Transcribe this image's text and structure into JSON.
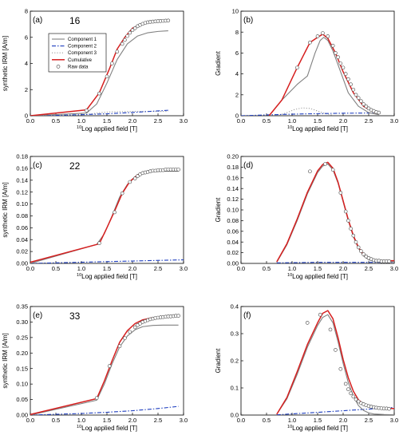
{
  "colors": {
    "component1": "#808080",
    "component2": "#1f3fbf",
    "component3": "#a0a0a0",
    "cumulative": "#d61f1f",
    "raw": "#444444"
  },
  "legend": {
    "component1": "Component 1",
    "component2": "Component 2",
    "component3": "Component 3",
    "cumulative": "Cumulative",
    "raw": "Raw data"
  },
  "chart_data": [
    {
      "panel": "(a)",
      "sample": "16",
      "type": "line",
      "kind": "irm",
      "xlabel_sup": "10",
      "xlabel": "Log applied field [T]",
      "ylabel": "synthetic IRM [A/m]",
      "xlim": [
        0,
        3
      ],
      "ylim": [
        0,
        8
      ],
      "xticks": [
        "0.0",
        "0.5",
        "1.0",
        "1.5",
        "2.0",
        "2.5",
        "3.0"
      ],
      "yticks": [
        "0",
        "2",
        "4",
        "6",
        "8"
      ],
      "legend_position": "top-left",
      "series": [
        {
          "name": "Component 1",
          "x": [
            0,
            1.1,
            1.3,
            1.5,
            1.7,
            1.9,
            2.1,
            2.3,
            2.5,
            2.7
          ],
          "y": [
            0,
            0.2,
            0.9,
            2.5,
            4.3,
            5.5,
            6.1,
            6.35,
            6.45,
            6.5
          ]
        },
        {
          "name": "Component 2",
          "x": [
            0,
            0.5,
            1.0,
            1.5,
            2.0,
            2.5,
            2.7
          ],
          "y": [
            0,
            0.03,
            0.08,
            0.15,
            0.25,
            0.37,
            0.42
          ]
        },
        {
          "name": "Component 3",
          "x": [
            0,
            0.8,
            1.0,
            1.2,
            1.4,
            1.6,
            1.8,
            2.0,
            2.7
          ],
          "y": [
            0,
            0.01,
            0.05,
            0.15,
            0.25,
            0.3,
            0.32,
            0.33,
            0.33
          ]
        },
        {
          "name": "Cumulative",
          "x": [
            0,
            1.1,
            1.35,
            1.55,
            1.7,
            1.85,
            2.0,
            2.2,
            2.4,
            2.7
          ],
          "y": [
            0,
            0.45,
            1.75,
            3.6,
            5.1,
            6.0,
            6.7,
            7.05,
            7.2,
            7.3
          ]
        },
        {
          "name": "Raw data",
          "x": [
            1.1,
            1.35,
            1.5,
            1.6,
            1.7,
            1.8,
            1.85,
            1.9,
            1.95,
            2.0,
            2.05,
            2.1,
            2.15,
            2.2,
            2.25,
            2.3,
            2.35,
            2.4,
            2.45,
            2.5,
            2.55,
            2.6,
            2.65,
            2.7
          ],
          "y": [
            0.4,
            1.7,
            3.0,
            4.0,
            4.9,
            5.5,
            5.8,
            6.1,
            6.35,
            6.55,
            6.7,
            6.85,
            6.95,
            7.03,
            7.1,
            7.15,
            7.18,
            7.2,
            7.22,
            7.24,
            7.25,
            7.26,
            7.27,
            7.28
          ]
        }
      ]
    },
    {
      "panel": "(b)",
      "sample": "",
      "type": "line",
      "kind": "gradient",
      "xlabel_sup": "10",
      "xlabel": "Log applied field [T]",
      "ylabel": "Gradient",
      "xlim": [
        0,
        3
      ],
      "ylim": [
        0,
        10
      ],
      "xticks": [
        "0.0",
        "0.5",
        "1.0",
        "1.5",
        "2.0",
        "2.5",
        "3.0"
      ],
      "yticks": [
        "0",
        "2",
        "4",
        "6",
        "8",
        "10"
      ],
      "series": [
        {
          "name": "Component 1",
          "x": [
            0.55,
            0.8,
            1.1,
            1.3,
            1.45,
            1.55,
            1.62,
            1.7,
            1.8,
            1.95,
            2.1,
            2.3,
            2.5,
            2.7
          ],
          "y": [
            0,
            1.5,
            3.0,
            3.8,
            6.0,
            7.2,
            7.5,
            7.2,
            6.2,
            4.2,
            2.2,
            0.9,
            0.3,
            0.1
          ]
        },
        {
          "name": "Component 2",
          "x": [
            0,
            0.5,
            1.0,
            1.5,
            2.0,
            2.5,
            2.7
          ],
          "y": [
            0,
            0.08,
            0.15,
            0.2,
            0.24,
            0.26,
            0.27
          ]
        },
        {
          "name": "Component 3",
          "x": [
            0.75,
            0.9,
            1.05,
            1.2,
            1.35,
            1.5,
            1.65,
            1.8
          ],
          "y": [
            0.05,
            0.3,
            0.6,
            0.75,
            0.7,
            0.45,
            0.2,
            0.05
          ]
        },
        {
          "name": "Cumulative",
          "x": [
            0.55,
            0.8,
            1.1,
            1.35,
            1.5,
            1.6,
            1.7,
            1.85,
            2.0,
            2.2,
            2.4,
            2.6,
            2.7
          ],
          "y": [
            0,
            1.5,
            4.6,
            7.0,
            7.5,
            7.8,
            7.4,
            6.0,
            4.2,
            2.2,
            0.9,
            0.35,
            0.25
          ]
        },
        {
          "name": "Raw data",
          "x": [
            1.1,
            1.35,
            1.5,
            1.6,
            1.7,
            1.8,
            1.85,
            1.9,
            1.95,
            2.0,
            2.05,
            2.1,
            2.15,
            2.2,
            2.25,
            2.3,
            2.35,
            2.4,
            2.45,
            2.5,
            2.55,
            2.6,
            2.65,
            2.7
          ],
          "y": [
            4.6,
            7.0,
            7.6,
            7.9,
            7.6,
            6.7,
            6.0,
            5.6,
            5.0,
            4.6,
            4.0,
            3.5,
            3.0,
            2.5,
            2.0,
            1.7,
            1.4,
            1.1,
            0.9,
            0.7,
            0.55,
            0.45,
            0.35,
            0.3
          ]
        }
      ]
    },
    {
      "panel": "(c)",
      "sample": "22",
      "type": "line",
      "kind": "irm",
      "xlabel_sup": "10",
      "xlabel": "Log applied field [T]",
      "ylabel": "synthetic IRM [A/m]",
      "xlim": [
        0,
        3
      ],
      "ylim": [
        0,
        0.18
      ],
      "xticks": [
        "0.0",
        "0.5",
        "1.0",
        "1.5",
        "2.0",
        "2.5",
        "3.0"
      ],
      "yticks": [
        "0.00",
        "0.02",
        "0.04",
        "0.06",
        "0.08",
        "0.10",
        "0.12",
        "0.14",
        "0.16",
        "0.18"
      ],
      "series": [
        {
          "name": "Component 1",
          "x": [
            0,
            1.3,
            1.45,
            1.6,
            1.75,
            1.9,
            2.05,
            2.2,
            2.4,
            2.6,
            2.9
          ],
          "y": [
            0,
            0.032,
            0.05,
            0.08,
            0.112,
            0.133,
            0.145,
            0.151,
            0.154,
            0.155,
            0.155
          ]
        },
        {
          "name": "Component 2",
          "x": [
            0,
            1.0,
            2.0,
            3.0
          ],
          "y": [
            0,
            0.002,
            0.004,
            0.006
          ]
        },
        {
          "name": "Cumulative",
          "x": [
            0,
            1.35,
            1.5,
            1.65,
            1.8,
            1.95,
            2.1,
            2.3,
            2.5,
            2.7,
            2.9
          ],
          "y": [
            0.002,
            0.033,
            0.06,
            0.088,
            0.118,
            0.138,
            0.149,
            0.155,
            0.157,
            0.158,
            0.158
          ]
        },
        {
          "name": "Raw data",
          "x": [
            1.35,
            1.65,
            1.8,
            1.95,
            2.05,
            2.1,
            2.15,
            2.2,
            2.25,
            2.3,
            2.35,
            2.4,
            2.45,
            2.5,
            2.55,
            2.6,
            2.65,
            2.7,
            2.75,
            2.8,
            2.85,
            2.9
          ],
          "y": [
            0.034,
            0.086,
            0.118,
            0.137,
            0.143,
            0.147,
            0.15,
            0.152,
            0.153,
            0.154,
            0.155,
            0.156,
            0.156,
            0.157,
            0.157,
            0.157,
            0.158,
            0.158,
            0.158,
            0.158,
            0.158,
            0.158
          ]
        }
      ]
    },
    {
      "panel": "(d)",
      "sample": "",
      "type": "line",
      "kind": "gradient",
      "xlabel_sup": "10",
      "xlabel": "Log applied field [T]",
      "ylabel": "Gradient",
      "xlim": [
        0,
        3
      ],
      "ylim": [
        0,
        0.2
      ],
      "xticks": [
        "0.0",
        "0.5",
        "1.0",
        "1.5",
        "2.0",
        "2.5",
        "3.0"
      ],
      "yticks": [
        "0.00",
        "0.02",
        "0.04",
        "0.06",
        "0.08",
        "0.10",
        "0.12",
        "0.14",
        "0.16",
        "0.18",
        "0.20"
      ],
      "series": [
        {
          "name": "Component 1",
          "x": [
            0.7,
            0.9,
            1.1,
            1.3,
            1.5,
            1.6,
            1.7,
            1.8,
            1.9,
            2.0,
            2.1,
            2.2,
            2.3,
            2.4,
            2.5,
            2.6,
            2.8,
            3.0
          ],
          "y": [
            0.002,
            0.035,
            0.08,
            0.13,
            0.17,
            0.182,
            0.186,
            0.175,
            0.15,
            0.115,
            0.08,
            0.05,
            0.028,
            0.014,
            0.007,
            0.004,
            0.003,
            0.003
          ]
        },
        {
          "name": "Component 2",
          "x": [
            0.7,
            1.5,
            2.5,
            3.0
          ],
          "y": [
            0.001,
            0.002,
            0.002,
            0.002
          ]
        },
        {
          "name": "Cumulative",
          "x": [
            0.7,
            0.9,
            1.1,
            1.3,
            1.5,
            1.6,
            1.7,
            1.8,
            1.9,
            2.0,
            2.1,
            2.2,
            2.3,
            2.4,
            2.5,
            2.6,
            2.8,
            3.0
          ],
          "y": [
            0.003,
            0.037,
            0.083,
            0.133,
            0.173,
            0.185,
            0.189,
            0.178,
            0.152,
            0.117,
            0.082,
            0.052,
            0.03,
            0.016,
            0.009,
            0.006,
            0.005,
            0.005
          ]
        },
        {
          "name": "Raw data",
          "x": [
            1.35,
            1.65,
            1.8,
            1.95,
            2.05,
            2.1,
            2.15,
            2.2,
            2.25,
            2.3,
            2.35,
            2.4,
            2.45,
            2.5,
            2.55,
            2.6,
            2.65,
            2.7,
            2.75,
            2.8,
            2.85,
            2.9
          ],
          "y": [
            0.172,
            0.186,
            0.175,
            0.132,
            0.097,
            0.08,
            0.065,
            0.052,
            0.04,
            0.03,
            0.023,
            0.017,
            0.013,
            0.01,
            0.008,
            0.006,
            0.005,
            0.005,
            0.004,
            0.004,
            0.004,
            0.004
          ]
        }
      ]
    },
    {
      "panel": "(e)",
      "sample": "33",
      "type": "line",
      "kind": "irm",
      "xlabel_sup": "10",
      "xlabel": "Log applied field [T]",
      "ylabel": "synthetic IRM [A/m]",
      "xlim": [
        0,
        3
      ],
      "ylim": [
        0,
        0.35
      ],
      "xticks": [
        "0.0",
        "0.5",
        "1.0",
        "1.5",
        "2.0",
        "2.5",
        "3.0"
      ],
      "yticks": [
        "0.00",
        "0.05",
        "0.10",
        "0.15",
        "0.20",
        "0.25",
        "0.30",
        "0.35"
      ],
      "series": [
        {
          "name": "Component 1",
          "x": [
            0,
            1.3,
            1.45,
            1.6,
            1.75,
            1.9,
            2.05,
            2.2,
            2.4,
            2.6,
            2.9
          ],
          "y": [
            0,
            0.048,
            0.1,
            0.165,
            0.22,
            0.255,
            0.275,
            0.285,
            0.289,
            0.29,
            0.29
          ]
        },
        {
          "name": "Component 2",
          "x": [
            0,
            1.0,
            1.5,
            2.0,
            2.5,
            2.9
          ],
          "y": [
            0,
            0.005,
            0.009,
            0.014,
            0.021,
            0.028
          ]
        },
        {
          "name": "Cumulative",
          "x": [
            0,
            1.3,
            1.45,
            1.6,
            1.75,
            1.9,
            2.05,
            2.2,
            2.4,
            2.6,
            2.9
          ],
          "y": [
            0.002,
            0.053,
            0.11,
            0.175,
            0.235,
            0.272,
            0.295,
            0.307,
            0.314,
            0.318,
            0.321
          ]
        },
        {
          "name": "Raw data",
          "x": [
            1.3,
            1.55,
            1.75,
            1.85,
            1.95,
            2.05,
            2.1,
            2.15,
            2.2,
            2.25,
            2.3,
            2.35,
            2.4,
            2.45,
            2.5,
            2.55,
            2.6,
            2.65,
            2.7,
            2.75,
            2.8,
            2.85,
            2.9
          ],
          "y": [
            0.055,
            0.158,
            0.222,
            0.248,
            0.268,
            0.283,
            0.29,
            0.295,
            0.3,
            0.303,
            0.306,
            0.309,
            0.311,
            0.313,
            0.314,
            0.315,
            0.316,
            0.317,
            0.318,
            0.318,
            0.319,
            0.32,
            0.32
          ]
        }
      ]
    },
    {
      "panel": "(f)",
      "sample": "",
      "type": "line",
      "kind": "gradient",
      "xlabel_sup": "10",
      "xlabel": "Log applied field [T]",
      "ylabel": "Gradient",
      "xlim": [
        0,
        3
      ],
      "ylim": [
        0,
        0.4
      ],
      "xticks": [
        "0.0",
        "0.5",
        "1.0",
        "1.5",
        "2.0",
        "2.5",
        "3.0"
      ],
      "yticks": [
        "0.0",
        "0.1",
        "0.2",
        "0.3",
        "0.4"
      ],
      "series": [
        {
          "name": "Component 1",
          "x": [
            0.7,
            0.9,
            1.1,
            1.3,
            1.5,
            1.6,
            1.7,
            1.8,
            1.9,
            2.0,
            2.1,
            2.2,
            2.3,
            2.4,
            2.5,
            2.6,
            2.8,
            3.0
          ],
          "y": [
            0.003,
            0.06,
            0.15,
            0.25,
            0.33,
            0.36,
            0.37,
            0.34,
            0.27,
            0.19,
            0.12,
            0.07,
            0.035,
            0.017,
            0.008,
            0.004,
            0.002,
            0.001
          ]
        },
        {
          "name": "Component 2",
          "x": [
            0.7,
            1.5,
            2.0,
            2.5,
            3.0
          ],
          "y": [
            0.001,
            0.01,
            0.016,
            0.022,
            0.028
          ]
        },
        {
          "name": "Cumulative",
          "x": [
            0.7,
            0.9,
            1.1,
            1.3,
            1.5,
            1.6,
            1.7,
            1.8,
            1.9,
            2.0,
            2.1,
            2.2,
            2.3,
            2.4,
            2.5,
            2.6,
            2.8,
            3.0
          ],
          "y": [
            0.003,
            0.065,
            0.16,
            0.26,
            0.34,
            0.375,
            0.385,
            0.355,
            0.285,
            0.205,
            0.138,
            0.088,
            0.056,
            0.04,
            0.032,
            0.028,
            0.025,
            0.024
          ]
        },
        {
          "name": "Raw data",
          "x": [
            1.3,
            1.55,
            1.75,
            1.85,
            1.95,
            2.05,
            2.1,
            2.15,
            2.2,
            2.25,
            2.3,
            2.35,
            2.4,
            2.45,
            2.5,
            2.55,
            2.6,
            2.65,
            2.7,
            2.75,
            2.8,
            2.85,
            2.9
          ],
          "y": [
            0.34,
            0.37,
            0.315,
            0.24,
            0.17,
            0.115,
            0.095,
            0.08,
            0.068,
            0.058,
            0.05,
            0.044,
            0.04,
            0.036,
            0.033,
            0.031,
            0.029,
            0.027,
            0.026,
            0.025,
            0.024,
            0.024,
            0.023
          ]
        }
      ]
    }
  ]
}
